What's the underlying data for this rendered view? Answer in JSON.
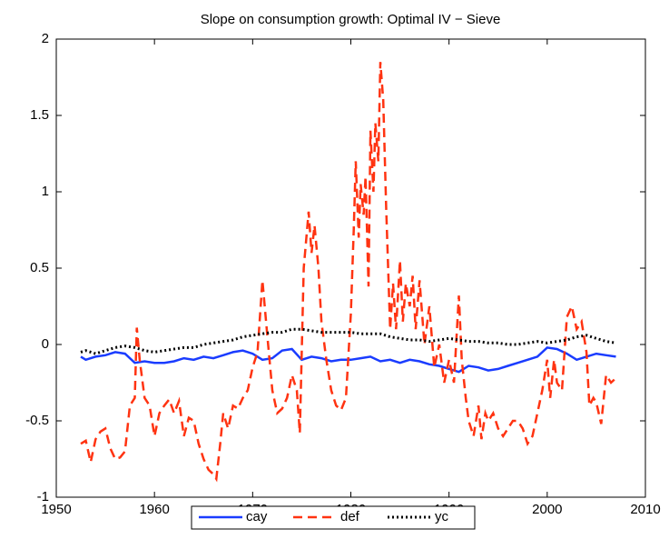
{
  "chart_data": {
    "type": "line",
    "title": "Slope on consumption growth: Optimal IV − Sieve",
    "xlim": [
      1950,
      2010
    ],
    "xticks": [
      1950,
      1960,
      1970,
      1980,
      1990,
      2000,
      2010
    ],
    "ylim": [
      -1,
      2
    ],
    "yticks": [
      -1,
      -0.5,
      0,
      0.5,
      1,
      1.5,
      2
    ],
    "grid": false,
    "legend": "bottom",
    "series": [
      {
        "name": "cay",
        "color": "#1a3cff",
        "style": "solid",
        "x": [
          1952.5,
          1953,
          1954,
          1955,
          1956,
          1957,
          1958,
          1959,
          1960,
          1961,
          1962,
          1963,
          1964,
          1965,
          1966,
          1967,
          1968,
          1969,
          1970,
          1971,
          1972,
          1973,
          1974,
          1975,
          1976,
          1977,
          1978,
          1979,
          1980,
          1981,
          1982,
          1983,
          1984,
          1985,
          1986,
          1987,
          1988,
          1989,
          1990,
          1991,
          1992,
          1993,
          1994,
          1995,
          1996,
          1997,
          1998,
          1999,
          2000,
          2001,
          2002,
          2003,
          2004,
          2005,
          2006,
          2007
        ],
        "values": [
          -0.08,
          -0.1,
          -0.08,
          -0.07,
          -0.05,
          -0.06,
          -0.12,
          -0.11,
          -0.12,
          -0.12,
          -0.11,
          -0.09,
          -0.1,
          -0.08,
          -0.09,
          -0.07,
          -0.05,
          -0.04,
          -0.06,
          -0.1,
          -0.09,
          -0.04,
          -0.03,
          -0.1,
          -0.08,
          -0.09,
          -0.11,
          -0.1,
          -0.1,
          -0.09,
          -0.08,
          -0.11,
          -0.1,
          -0.12,
          -0.1,
          -0.11,
          -0.13,
          -0.14,
          -0.16,
          -0.18,
          -0.14,
          -0.15,
          -0.17,
          -0.16,
          -0.14,
          -0.12,
          -0.1,
          -0.08,
          -0.02,
          -0.03,
          -0.06,
          -0.1,
          -0.08,
          -0.06,
          -0.07,
          -0.08
        ]
      },
      {
        "name": "def",
        "color": "#ff3311",
        "style": "dashed",
        "x": [
          1952.5,
          1953,
          1953.5,
          1954,
          1954.5,
          1955,
          1955.5,
          1956,
          1956.5,
          1957,
          1957.5,
          1958,
          1958.2,
          1958.5,
          1959,
          1959.5,
          1960,
          1960.5,
          1961,
          1961.5,
          1962,
          1962.5,
          1963,
          1963.5,
          1964,
          1964.5,
          1965,
          1965.5,
          1966,
          1966.3,
          1966.7,
          1967,
          1967.5,
          1968,
          1968.5,
          1969,
          1969.5,
          1970,
          1970.5,
          1971,
          1971.5,
          1972,
          1972.5,
          1973,
          1973.5,
          1974,
          1974.5,
          1974.8,
          1975.2,
          1975.7,
          1976,
          1976.3,
          1976.7,
          1977,
          1977.5,
          1978,
          1978.5,
          1979,
          1979.5,
          1980,
          1980.3,
          1980.5,
          1980.8,
          1981,
          1981.3,
          1981.5,
          1981.8,
          1982,
          1982.3,
          1982.5,
          1982.8,
          1983,
          1983.3,
          1983.6,
          1984,
          1984.3,
          1984.6,
          1985,
          1985.3,
          1985.6,
          1986,
          1986.3,
          1986.6,
          1987,
          1987.5,
          1988,
          1988.5,
          1989,
          1989.5,
          1990,
          1990.5,
          1991,
          1991.3,
          1991.7,
          1992,
          1992.5,
          1993,
          1993.3,
          1993.7,
          1994,
          1994.5,
          1995,
          1995.5,
          1996,
          1996.5,
          1997,
          1997.5,
          1998,
          1998.5,
          1999,
          1999.5,
          2000,
          2000.3,
          2000.7,
          2001,
          2001.5,
          2002,
          2002.5,
          2003,
          2003.5,
          2004,
          2004.3,
          2004.7,
          2005,
          2005.5,
          2006,
          2006.5,
          2007
        ],
        "values": [
          -0.65,
          -0.63,
          -0.77,
          -0.62,
          -0.57,
          -0.55,
          -0.68,
          -0.75,
          -0.74,
          -0.7,
          -0.4,
          -0.35,
          0.11,
          -0.1,
          -0.35,
          -0.4,
          -0.6,
          -0.45,
          -0.4,
          -0.36,
          -0.45,
          -0.37,
          -0.6,
          -0.48,
          -0.5,
          -0.65,
          -0.75,
          -0.82,
          -0.85,
          -0.88,
          -0.65,
          -0.45,
          -0.55,
          -0.4,
          -0.42,
          -0.35,
          -0.3,
          -0.15,
          -0.05,
          0.42,
          0.05,
          -0.3,
          -0.45,
          -0.42,
          -0.35,
          -0.2,
          -0.3,
          -0.58,
          0.5,
          0.87,
          0.6,
          0.78,
          0.5,
          0.15,
          -0.1,
          -0.3,
          -0.4,
          -0.43,
          -0.35,
          0.2,
          0.75,
          1.2,
          0.7,
          1.05,
          0.85,
          1.1,
          0.38,
          1.4,
          1.0,
          1.45,
          1.2,
          1.85,
          1.6,
          0.9,
          0.1,
          0.4,
          0.1,
          0.55,
          0.15,
          0.4,
          0.25,
          0.45,
          0.1,
          0.42,
          0.0,
          0.25,
          -0.15,
          0.0,
          -0.25,
          -0.1,
          -0.25,
          0.32,
          -0.1,
          -0.35,
          -0.5,
          -0.6,
          -0.4,
          -0.62,
          -0.45,
          -0.5,
          -0.45,
          -0.55,
          -0.6,
          -0.55,
          -0.5,
          -0.5,
          -0.55,
          -0.65,
          -0.6,
          -0.45,
          -0.3,
          -0.1,
          -0.35,
          -0.1,
          -0.25,
          -0.3,
          0.18,
          0.25,
          0.1,
          0.15,
          -0.05,
          -0.4,
          -0.35,
          -0.38,
          -0.52,
          -0.2,
          -0.25,
          -0.22
        ]
      },
      {
        "name": "yc",
        "color": "#000000",
        "style": "dotted",
        "x": [
          1952.5,
          1953,
          1954,
          1955,
          1956,
          1957,
          1958,
          1959,
          1960,
          1961,
          1962,
          1963,
          1964,
          1965,
          1966,
          1967,
          1968,
          1969,
          1970,
          1971,
          1972,
          1973,
          1974,
          1975,
          1976,
          1977,
          1978,
          1979,
          1980,
          1981,
          1982,
          1983,
          1984,
          1985,
          1986,
          1987,
          1988,
          1989,
          1990,
          1991,
          1992,
          1993,
          1994,
          1995,
          1996,
          1997,
          1998,
          1999,
          2000,
          2001,
          2002,
          2003,
          2004,
          2005,
          2006,
          2007
        ],
        "values": [
          -0.05,
          -0.04,
          -0.06,
          -0.04,
          -0.02,
          -0.01,
          -0.02,
          -0.04,
          -0.05,
          -0.04,
          -0.03,
          -0.02,
          -0.02,
          0.0,
          0.01,
          0.02,
          0.03,
          0.05,
          0.06,
          0.07,
          0.08,
          0.08,
          0.1,
          0.1,
          0.09,
          0.08,
          0.08,
          0.08,
          0.08,
          0.07,
          0.07,
          0.07,
          0.05,
          0.04,
          0.03,
          0.03,
          0.02,
          0.03,
          0.04,
          0.03,
          0.02,
          0.02,
          0.01,
          0.01,
          0.0,
          0.0,
          0.01,
          0.02,
          0.01,
          0.02,
          0.03,
          0.05,
          0.06,
          0.04,
          0.02,
          0.01
        ]
      }
    ]
  }
}
